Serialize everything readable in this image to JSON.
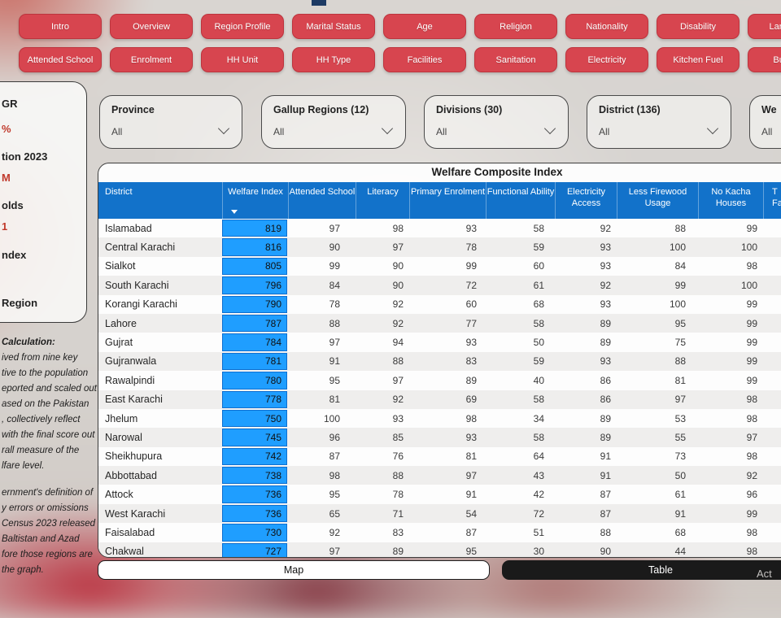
{
  "nav": {
    "row1": [
      "Intro",
      "Overview",
      "Region Profile",
      "Marital Status",
      "Age",
      "Religion",
      "Nationality",
      "Disability",
      "Language"
    ],
    "row2": [
      "Attended School",
      "Enrolment",
      "HH Unit",
      "HH Type",
      "Facilities",
      "Sanitation",
      "Electricity",
      "Kitchen Fuel",
      "Building"
    ]
  },
  "sidebar": {
    "fragments": [
      "GR",
      "%",
      "tion 2023",
      "M",
      "olds",
      "1",
      "ndex",
      "Region"
    ],
    "calc_title": "Calculation:",
    "calc_para1": [
      "ived from nine key",
      "tive to the population",
      "eported and scaled out",
      "ased on the Pakistan",
      ", collectively reflect",
      "with the final score out",
      "rall measure of the",
      "lfare level."
    ],
    "calc_para2": [
      "ernment's definition of",
      "y errors or omissions",
      "Census 2023 released",
      "Baltistan and Azad",
      "fore those regions are",
      "the graph."
    ]
  },
  "filters": [
    {
      "label": "Province",
      "value": "All"
    },
    {
      "label": "Gallup Regions (12)",
      "value": "All"
    },
    {
      "label": "Divisions (30)",
      "value": "All"
    },
    {
      "label": "District (136)",
      "value": "All"
    },
    {
      "label": "We",
      "value": "All"
    }
  ],
  "table": {
    "title": "Welfare Composite Index",
    "columns": [
      {
        "label": "District",
        "sorted": false
      },
      {
        "label": "Welfare Index",
        "sorted": true
      },
      {
        "label": "Attended School",
        "sorted": false
      },
      {
        "label": "Literacy",
        "sorted": false
      },
      {
        "label": "Primary Enrolment",
        "sorted": false
      },
      {
        "label": "Functional Ability",
        "sorted": false
      },
      {
        "label": "Electricity Access",
        "sorted": false
      },
      {
        "label": "Less Firewood Usage",
        "sorted": false
      },
      {
        "label": "No Kacha Houses",
        "sorted": false
      },
      {
        "label": "T\nFa",
        "sorted": false
      }
    ],
    "rows": [
      {
        "district": "Islamabad",
        "welfare": 819,
        "values": [
          97,
          98,
          93,
          58,
          92,
          88,
          99
        ]
      },
      {
        "district": "Central Karachi",
        "welfare": 816,
        "values": [
          90,
          97,
          78,
          59,
          93,
          100,
          100
        ]
      },
      {
        "district": "Sialkot",
        "welfare": 805,
        "values": [
          99,
          90,
          99,
          60,
          93,
          84,
          98
        ]
      },
      {
        "district": "South Karachi",
        "welfare": 796,
        "values": [
          84,
          90,
          72,
          61,
          92,
          99,
          100
        ]
      },
      {
        "district": "Korangi Karachi",
        "welfare": 790,
        "values": [
          78,
          92,
          60,
          68,
          93,
          100,
          99
        ]
      },
      {
        "district": "Lahore",
        "welfare": 787,
        "values": [
          88,
          92,
          77,
          58,
          89,
          95,
          99
        ]
      },
      {
        "district": "Gujrat",
        "welfare": 784,
        "values": [
          97,
          94,
          93,
          50,
          89,
          75,
          99
        ]
      },
      {
        "district": "Gujranwala",
        "welfare": 781,
        "values": [
          91,
          88,
          83,
          59,
          93,
          88,
          99
        ]
      },
      {
        "district": "Rawalpindi",
        "welfare": 780,
        "values": [
          95,
          97,
          89,
          40,
          86,
          81,
          99
        ]
      },
      {
        "district": "East Karachi",
        "welfare": 778,
        "values": [
          81,
          92,
          69,
          58,
          86,
          97,
          98
        ]
      },
      {
        "district": "Jhelum",
        "welfare": 750,
        "values": [
          100,
          93,
          98,
          34,
          89,
          53,
          98
        ]
      },
      {
        "district": "Narowal",
        "welfare": 745,
        "values": [
          96,
          85,
          93,
          58,
          89,
          55,
          97
        ]
      },
      {
        "district": "Sheikhupura",
        "welfare": 742,
        "values": [
          87,
          76,
          81,
          64,
          91,
          73,
          98
        ]
      },
      {
        "district": "Abbottabad",
        "welfare": 738,
        "values": [
          98,
          88,
          97,
          43,
          91,
          50,
          92
        ]
      },
      {
        "district": "Attock",
        "welfare": 736,
        "values": [
          95,
          78,
          91,
          42,
          87,
          61,
          96
        ]
      },
      {
        "district": "West Karachi",
        "welfare": 736,
        "values": [
          65,
          71,
          54,
          72,
          87,
          91,
          99
        ]
      },
      {
        "district": "Faisalabad",
        "welfare": 730,
        "values": [
          92,
          83,
          87,
          51,
          88,
          68,
          98
        ]
      },
      {
        "district": "Chakwal",
        "welfare": 727,
        "values": [
          97,
          89,
          95,
          30,
          90,
          44,
          98
        ]
      }
    ]
  },
  "view_toggle": {
    "map_label": "Map",
    "table_label": "Table"
  },
  "watermark_fragment": "Act",
  "colors": {
    "accent_red": "#d7454f",
    "header_blue": "#1272ca",
    "bar_blue": "#1f9eff",
    "button_dark": "#1a1a1a"
  }
}
